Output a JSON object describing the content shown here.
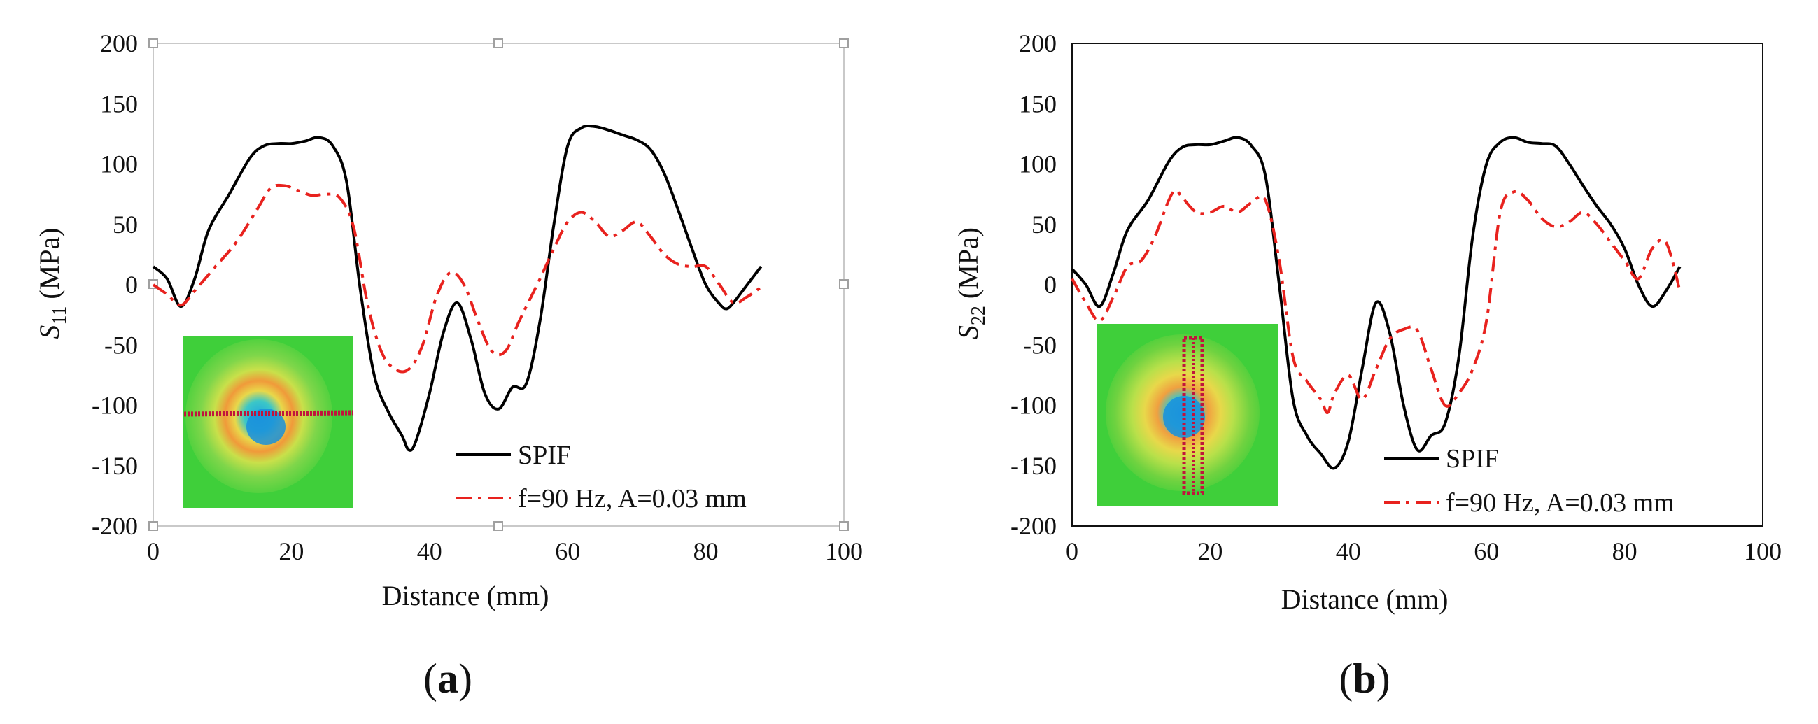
{
  "chart_data": [
    {
      "type": "line",
      "xlabel": "Distance (mm)",
      "ylabel": {
        "symbol": "S",
        "subscript": "11",
        "unit": "(MPa)"
      },
      "xlim": [
        0,
        100
      ],
      "ylim": [
        -200,
        200
      ],
      "xticks": [
        "0",
        "20",
        "40",
        "60",
        "80",
        "100"
      ],
      "yticks": [
        "200",
        "150",
        "100",
        "50",
        "0",
        "-50",
        "-100",
        "-150",
        "-200"
      ],
      "grid": false,
      "legend_position": "bottom-right",
      "caption": {
        "open": "(",
        "letter": "a",
        "close": ")"
      },
      "series": [
        {
          "name": "SPIF",
          "color": "#000000",
          "style": "solid",
          "x": [
            0,
            2,
            4,
            6,
            8,
            11,
            14,
            16,
            18,
            20,
            22,
            24,
            26,
            28,
            30,
            32,
            34,
            36,
            37,
            38,
            40,
            42,
            44,
            46,
            48,
            50,
            52,
            54,
            56,
            58,
            60,
            62,
            64,
            66,
            68,
            70,
            72,
            74,
            76,
            78,
            80,
            82,
            83,
            84,
            86,
            88
          ],
          "y": [
            15,
            5,
            -18,
            5,
            45,
            75,
            105,
            115,
            117,
            117,
            119,
            122,
            115,
            85,
            -5,
            -75,
            -105,
            -125,
            -137,
            -130,
            -90,
            -40,
            -15,
            -45,
            -90,
            -103,
            -85,
            -82,
            -30,
            50,
            115,
            130,
            131,
            128,
            124,
            120,
            112,
            92,
            62,
            30,
            0,
            -16,
            -20,
            -15,
            0,
            15
          ]
        },
        {
          "name": "f=90 Hz, A=0.03 mm",
          "color": "#e8221e",
          "style": "dashdot",
          "x": [
            0,
            2,
            4,
            6,
            9,
            12,
            15,
            17,
            19,
            21,
            23,
            25,
            27,
            29,
            31,
            33,
            35,
            37,
            39,
            41,
            43,
            45,
            47,
            49,
            51,
            53,
            56,
            58,
            60,
            62,
            64,
            66,
            68,
            70,
            72,
            74,
            76,
            78,
            80,
            82,
            84,
            86,
            88
          ],
          "y": [
            0,
            -8,
            -17,
            -5,
            15,
            35,
            62,
            80,
            82,
            78,
            74,
            75,
            72,
            48,
            -15,
            -55,
            -70,
            -70,
            -50,
            -10,
            10,
            0,
            -30,
            -55,
            -55,
            -30,
            5,
            30,
            52,
            60,
            52,
            40,
            45,
            52,
            40,
            25,
            17,
            15,
            15,
            0,
            -15,
            -10,
            -2
          ]
        }
      ]
    },
    {
      "type": "line",
      "xlabel": "Distance (mm)",
      "ylabel": {
        "symbol": "S",
        "subscript": "22",
        "unit": "(MPa)"
      },
      "xlim": [
        0,
        100
      ],
      "ylim": [
        -200,
        200
      ],
      "xticks": [
        "0",
        "20",
        "40",
        "60",
        "80",
        "100"
      ],
      "yticks": [
        "200",
        "150",
        "100",
        "50",
        "0",
        "-50",
        "-100",
        "-150",
        "-200"
      ],
      "grid": false,
      "legend_position": "bottom-right",
      "caption": {
        "open": "(",
        "letter": "b",
        "close": ")"
      },
      "series": [
        {
          "name": "SPIF",
          "color": "#000000",
          "style": "solid",
          "x": [
            0,
            2,
            4,
            6,
            8,
            11,
            14,
            16,
            18,
            20,
            22,
            24,
            26,
            28,
            30,
            32,
            34,
            36,
            38,
            40,
            42,
            44,
            46,
            48,
            50,
            52,
            54,
            56,
            58,
            60,
            62,
            64,
            66,
            68,
            70,
            72,
            74,
            76,
            78,
            80,
            82,
            84,
            86,
            88
          ],
          "y": [
            13,
            0,
            -18,
            10,
            45,
            70,
            102,
            114,
            116,
            116,
            119,
            122,
            115,
            90,
            0,
            -95,
            -125,
            -140,
            -152,
            -130,
            -70,
            -15,
            -40,
            -100,
            -137,
            -125,
            -115,
            -60,
            40,
            100,
            118,
            122,
            118,
            117,
            115,
            100,
            82,
            65,
            50,
            30,
            0,
            -18,
            -5,
            15
          ]
        },
        {
          "name": "f=90 Hz, A=0.03 mm",
          "color": "#e8221e",
          "style": "dashdot",
          "x": [
            0,
            2,
            4,
            6,
            8,
            10,
            12,
            14,
            15,
            16,
            18,
            20,
            22,
            24,
            26,
            28,
            30,
            32,
            34,
            36,
            37,
            38,
            40,
            42,
            44,
            46,
            48,
            50,
            52,
            54,
            56,
            58,
            60,
            62,
            64,
            66,
            68,
            70,
            72,
            74,
            76,
            78,
            80,
            82,
            84,
            86,
            88
          ],
          "y": [
            5,
            -15,
            -30,
            -10,
            15,
            20,
            40,
            70,
            78,
            72,
            60,
            60,
            65,
            60,
            68,
            70,
            20,
            -60,
            -80,
            -95,
            -106,
            -90,
            -75,
            -95,
            -70,
            -45,
            -37,
            -38,
            -70,
            -100,
            -90,
            -70,
            -30,
            60,
            77,
            70,
            55,
            48,
            52,
            60,
            50,
            35,
            20,
            5,
            30,
            35,
            -5
          ]
        }
      ]
    }
  ]
}
